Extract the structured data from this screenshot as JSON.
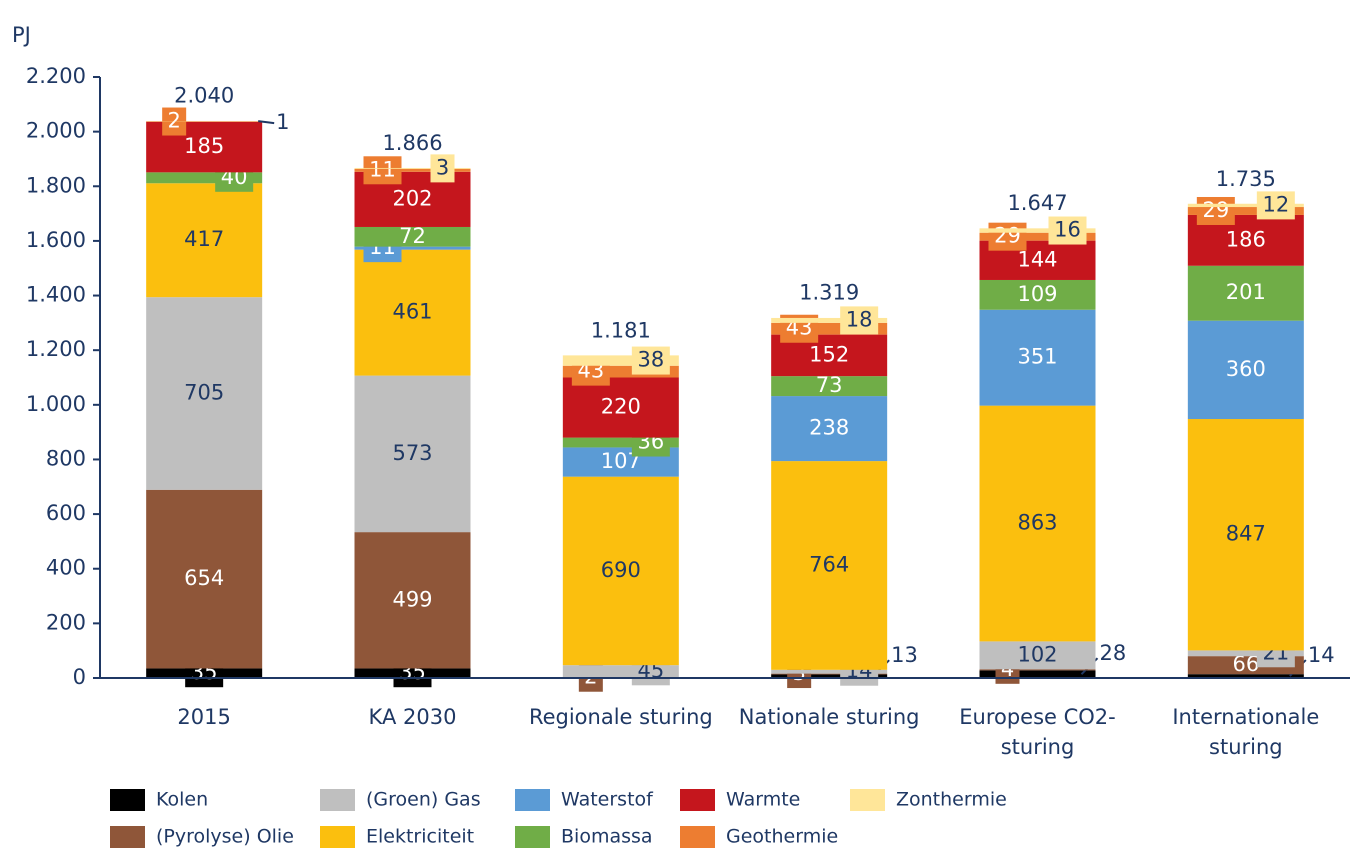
{
  "chart_data": {
    "type": "stacked_bar",
    "y_label": "PJ",
    "categories": [
      "2015",
      "KA 2030",
      "Regionale sturing",
      "Nationale sturing",
      "Europese CO2-sturing",
      "Internationale sturing"
    ],
    "series": [
      {
        "name": "Kolen",
        "color": "#000000",
        "values": [
          35,
          35,
          null,
          13,
          28,
          14
        ]
      },
      {
        "name": "(Pyrolyse) Olie",
        "color": "#8f5639",
        "values": [
          654,
          499,
          2,
          3,
          4,
          66
        ]
      },
      {
        "name": "(Groen) Gas",
        "color": "#bfbfbf",
        "values": [
          705,
          573,
          45,
          14,
          102,
          21
        ]
      },
      {
        "name": "Elektriciteit",
        "color": "#fbbf0e",
        "values": [
          417,
          461,
          690,
          764,
          863,
          847
        ]
      },
      {
        "name": "Waterstof",
        "color": "#5b9bd5",
        "values": [
          null,
          11,
          107,
          238,
          351,
          360
        ]
      },
      {
        "name": "Biomassa",
        "color": "#70ad47",
        "values": [
          40,
          72,
          36,
          73,
          109,
          201
        ]
      },
      {
        "name": "Warmte",
        "color": "#c5161d",
        "values": [
          185,
          202,
          220,
          152,
          144,
          186
        ]
      },
      {
        "name": "Geothermie",
        "color": "#ed7d31",
        "values": [
          2,
          11,
          43,
          43,
          29,
          29
        ]
      },
      {
        "name": "Zonthermie",
        "color": "#ffe699",
        "values": [
          1,
          3,
          38,
          18,
          16,
          12
        ]
      }
    ],
    "totals": {
      "values": [
        2040,
        1866,
        1181,
        1319,
        1647,
        1735
      ],
      "value_labels": [
        "2.040",
        "1.866",
        "1.181",
        "1.319",
        "1.647",
        "1.735"
      ]
    },
    "ylim": [
      0,
      2200
    ],
    "yticks": [
      0,
      200,
      400,
      600,
      800,
      {
        "value": 1000,
        "label": "1.000"
      },
      {
        "value": 1200,
        "label": "1.200"
      },
      {
        "value": 1400,
        "label": "1.400"
      },
      {
        "value": 1600,
        "label": "1.600"
      },
      {
        "value": 1800,
        "label": "1.800"
      },
      {
        "value": 2000,
        "label": "2.000"
      },
      {
        "value": 2200,
        "label": "2.200"
      }
    ]
  }
}
